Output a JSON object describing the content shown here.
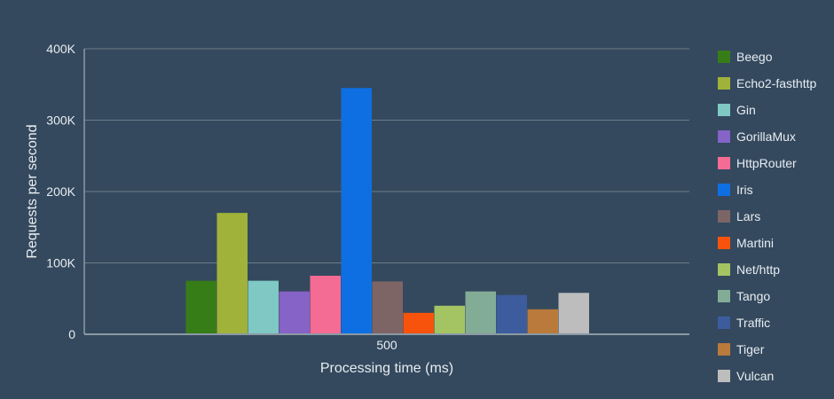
{
  "chart_data": {
    "type": "bar",
    "categories": [
      "500"
    ],
    "xlabel": "Processing time (ms)",
    "ylabel": "Requests per second",
    "ylim": [
      0,
      400000
    ],
    "yticks": [
      {
        "value": 0,
        "label": "0"
      },
      {
        "value": 100000,
        "label": "100K"
      },
      {
        "value": 200000,
        "label": "200K"
      },
      {
        "value": 300000,
        "label": "300K"
      },
      {
        "value": 400000,
        "label": "400K"
      }
    ],
    "grid": true,
    "legend_position": "right",
    "series": [
      {
        "name": "Beego",
        "values": [
          75000
        ],
        "color": "#367d18"
      },
      {
        "name": "Echo2-fasthttp",
        "values": [
          170000
        ],
        "color": "#a0b23a"
      },
      {
        "name": "Gin",
        "values": [
          75000
        ],
        "color": "#7fc8c4"
      },
      {
        "name": "GorillaMux",
        "values": [
          60000
        ],
        "color": "#8663c7"
      },
      {
        "name": "HttpRouter",
        "values": [
          82000
        ],
        "color": "#f46b94"
      },
      {
        "name": "Iris",
        "values": [
          345000
        ],
        "color": "#0e6fe3"
      },
      {
        "name": "Lars",
        "values": [
          74000
        ],
        "color": "#7d6566"
      },
      {
        "name": "Martini",
        "values": [
          30000
        ],
        "color": "#f7530d"
      },
      {
        "name": "Net/http",
        "values": [
          40000
        ],
        "color": "#a4c463"
      },
      {
        "name": "Tango",
        "values": [
          60000
        ],
        "color": "#83ac96"
      },
      {
        "name": "Traffic",
        "values": [
          55000
        ],
        "color": "#3d5c9e"
      },
      {
        "name": "Tiger",
        "values": [
          35000
        ],
        "color": "#b97a3b"
      },
      {
        "name": "Vulcan",
        "values": [
          58000
        ],
        "color": "#bdbdbd"
      }
    ]
  }
}
